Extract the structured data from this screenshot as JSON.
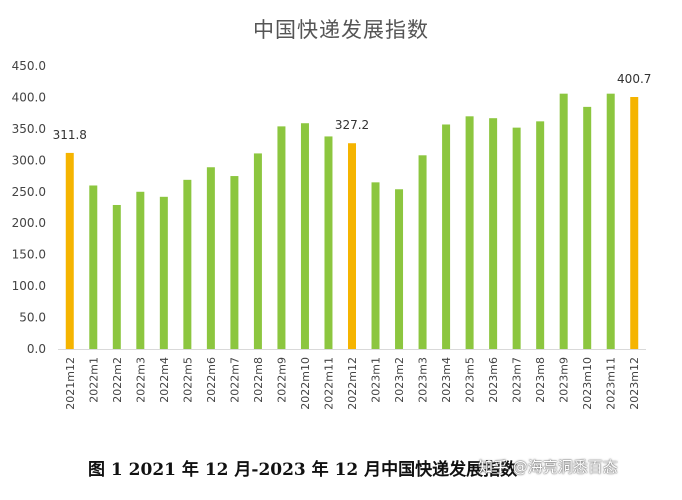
{
  "chart_data": {
    "type": "bar",
    "title": "中国快递发展指数",
    "categories": [
      "2021m12",
      "2022m1",
      "2022m2",
      "2022m3",
      "2022m4",
      "2022m5",
      "2022m6",
      "2022m7",
      "2022m8",
      "2022m9",
      "2022m10",
      "2022m11",
      "2022m12",
      "2023m1",
      "2023m2",
      "2023m3",
      "2023m4",
      "2023m5",
      "2023m6",
      "2023m7",
      "2023m8",
      "2023m9",
      "2023m10",
      "2023m11",
      "2023m12"
    ],
    "values": [
      311.8,
      260,
      229,
      250,
      242,
      269,
      289,
      275,
      311,
      354,
      359,
      338,
      327.2,
      265,
      254,
      308,
      357,
      370,
      367,
      352,
      362,
      406,
      385,
      406,
      400.7
    ],
    "highlighted": [
      "2021m12",
      "2022m12",
      "2023m12"
    ],
    "data_labels": [
      {
        "category": "2021m12",
        "text": "311.8"
      },
      {
        "category": "2022m12",
        "text": "327.2"
      },
      {
        "category": "2023m12",
        "text": "400.7"
      }
    ],
    "ylim": [
      0,
      450
    ],
    "yticks": [
      "0.0",
      "50.0",
      "100.0",
      "150.0",
      "200.0",
      "250.0",
      "300.0",
      "350.0",
      "400.0",
      "450.0"
    ],
    "xlabel": "",
    "ylabel": "",
    "grid": false,
    "legend": "none",
    "colors": {
      "bar": "#8cc63f",
      "highlight": "#f5b400",
      "axis": "#d9d9d9",
      "text": "#444444"
    }
  },
  "caption": "图 1 2021 年 12 月-2023 年 12 月中国快递发展指数",
  "watermark": "知乎 @海亮洞悉百态"
}
